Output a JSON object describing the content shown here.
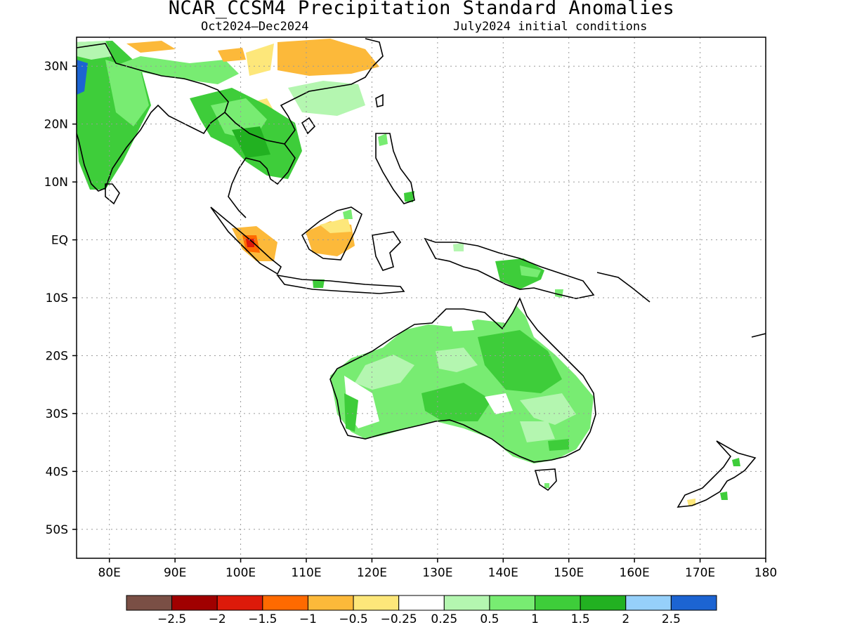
{
  "title": "NCAR_CCSM4 Precipitation Standard Anomalies",
  "period": "Oct2024–Dec2024",
  "init": "July2024 initial conditions",
  "lat_labels": [
    "30N",
    "20N",
    "10N",
    "EQ",
    "10S",
    "20S",
    "30S",
    "40S",
    "50S"
  ],
  "lat_values": [
    30,
    20,
    10,
    0,
    -10,
    -20,
    -30,
    -40,
    -50
  ],
  "lon_labels": [
    "80E",
    "90E",
    "100E",
    "110E",
    "120E",
    "130E",
    "140E",
    "150E",
    "160E",
    "170E",
    "180"
  ],
  "lon_values": [
    80,
    90,
    100,
    110,
    120,
    130,
    140,
    150,
    160,
    170,
    180
  ],
  "map_extent": {
    "lon_min": 75,
    "lon_max": 180,
    "lat_min": -55,
    "lat_max": 35
  },
  "colorbar": {
    "colors": [
      "#7a4f45",
      "#a00000",
      "#dd1a0a",
      "#ff6a00",
      "#fcb93a",
      "#fde77a",
      "#ffffff",
      "#b4f6b0",
      "#78ec72",
      "#3ecd3a",
      "#22b121",
      "#96d0fa",
      "#1c64d2"
    ],
    "labels": [
      "−2.5",
      "−2",
      "−1.5",
      "−1",
      "−0.5",
      "−0.25",
      "0.25",
      "0.5",
      "1",
      "1.5",
      "2",
      "2.5"
    ]
  }
}
